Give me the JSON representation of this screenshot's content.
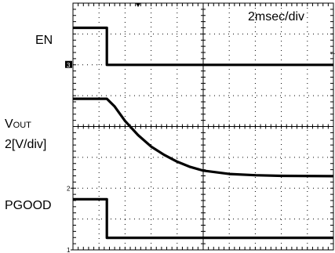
{
  "labels": {
    "time_scale": "2msec/div",
    "en": "EN",
    "vout_main": "V",
    "vout_sub": "OUT",
    "vout_scale": "2[V/div]",
    "pgood": "PGOOD"
  },
  "markers": {
    "ch3": "3",
    "ch2": "2",
    "ch1": "1",
    "arrow": "←"
  },
  "colors": {
    "trace": "#000000",
    "grid": "#000000",
    "marker_bg": "#000000",
    "marker_text": "#ffffff"
  },
  "chart_data": {
    "type": "line",
    "title": "",
    "xlabel": "2msec/div",
    "ylabel": "2[V/div]",
    "x_unit": "ms",
    "xlim": [
      0,
      20
    ],
    "ylim": [
      0,
      8
    ],
    "x_divisions": 10,
    "y_divisions": 8,
    "grid": true,
    "series": [
      {
        "name": "EN",
        "points": [
          [
            0,
            7.2
          ],
          [
            2.6,
            7.2
          ],
          [
            2.6,
            6.0
          ],
          [
            20,
            6.0
          ]
        ]
      },
      {
        "name": "VOUT",
        "points": [
          [
            0,
            4.9
          ],
          [
            2.6,
            4.9
          ],
          [
            3.2,
            4.65
          ],
          [
            4.0,
            4.18
          ],
          [
            5.0,
            3.72
          ],
          [
            6.0,
            3.35
          ],
          [
            7.0,
            3.08
          ],
          [
            8.0,
            2.86
          ],
          [
            9.0,
            2.69
          ],
          [
            10.0,
            2.57
          ],
          [
            12.0,
            2.46
          ],
          [
            14.0,
            2.42
          ],
          [
            16.0,
            2.4
          ],
          [
            20.0,
            2.39
          ]
        ]
      },
      {
        "name": "PGOOD",
        "points": [
          [
            0,
            1.64
          ],
          [
            2.6,
            1.64
          ],
          [
            2.6,
            0.39
          ],
          [
            20,
            0.39
          ]
        ]
      }
    ],
    "channel_markers": [
      {
        "label": "3",
        "y": 6.0
      },
      {
        "label": "2",
        "y": 2.0
      },
      {
        "label": "1",
        "y": 0.0
      }
    ]
  }
}
